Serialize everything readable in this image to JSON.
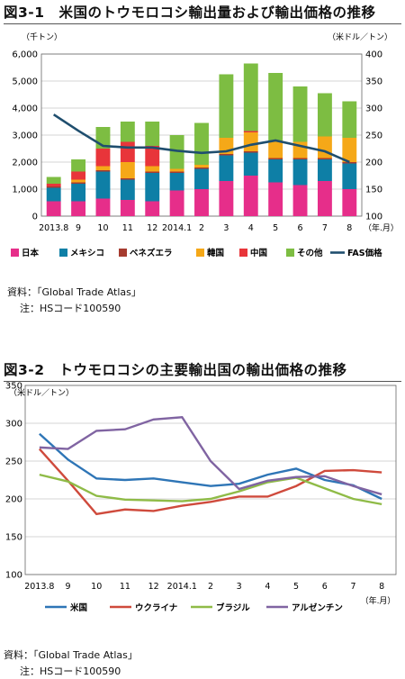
{
  "figures": [
    {
      "title": "図3-1　米国のトウモロコシ輸出量および輸出価格の推移",
      "source": "資料：「Global Trade Atlas」",
      "note": "注：HSコード100590"
    },
    {
      "title": "図3-2　トウモロコシの主要輸出国の輸出価格の推移",
      "source": "資料：「Global Trade Atlas」",
      "note": "注：HSコード100590"
    }
  ],
  "chart_data": [
    {
      "type": "bar",
      "stacked": true,
      "categories": [
        "2013.8",
        "9",
        "10",
        "11",
        "12",
        "2014.1",
        "2",
        "3",
        "4",
        "5",
        "6",
        "7",
        "8"
      ],
      "xunit": "（年.月）",
      "ylabel_left": "（千トン）",
      "ylabel_right": "（米ドル／トン）",
      "ylim_left": [
        0,
        6000
      ],
      "yticks_left": [
        0,
        1000,
        2000,
        3000,
        4000,
        5000,
        6000
      ],
      "ylim_right": [
        100,
        400
      ],
      "yticks_right": [
        100,
        150,
        200,
        250,
        300,
        350,
        400
      ],
      "grid": true,
      "legend_position": "bottom",
      "series": [
        {
          "name": "日本",
          "color": "#e62e8a",
          "values": [
            550,
            550,
            650,
            600,
            550,
            950,
            1000,
            1300,
            1500,
            1250,
            1150,
            1300,
            1000
          ]
        },
        {
          "name": "メキシコ",
          "color": "#0e7fa6",
          "values": [
            500,
            650,
            1000,
            750,
            1050,
            650,
            750,
            950,
            850,
            850,
            950,
            800,
            950
          ]
        },
        {
          "name": "ベネズエラ",
          "color": "#a63b2f",
          "values": [
            50,
            50,
            50,
            50,
            50,
            50,
            50,
            50,
            50,
            50,
            50,
            50,
            50
          ]
        },
        {
          "name": "韓国",
          "color": "#f5a818",
          "values": [
            0,
            100,
            150,
            600,
            200,
            100,
            100,
            600,
            700,
            650,
            600,
            800,
            900
          ]
        },
        {
          "name": "中国",
          "color": "#e8353a",
          "values": [
            100,
            300,
            650,
            750,
            750,
            0,
            0,
            0,
            50,
            0,
            0,
            0,
            0
          ]
        },
        {
          "name": "その他",
          "color": "#7dbd42",
          "values": [
            250,
            450,
            800,
            750,
            900,
            1250,
            1550,
            2350,
            2500,
            2500,
            2050,
            1600,
            1350
          ]
        }
      ],
      "line": {
        "name": "FAS価格",
        "color": "#1f4e6e",
        "axis": "right",
        "values": [
          288,
          258,
          230,
          227,
          227,
          221,
          217,
          220,
          232,
          240,
          230,
          220,
          200
        ]
      }
    },
    {
      "type": "line",
      "categories": [
        "2013.8",
        "9",
        "10",
        "11",
        "12",
        "2014.1",
        "2",
        "3",
        "4",
        "5",
        "6",
        "7",
        "8"
      ],
      "xunit": "（年.月）",
      "ylabel": "（米ドル／トン）",
      "ylim": [
        100,
        350
      ],
      "yticks": [
        100,
        150,
        200,
        250,
        300,
        350
      ],
      "grid": true,
      "legend_position": "bottom",
      "series": [
        {
          "name": "米国",
          "color": "#2e75b6",
          "values": [
            286,
            252,
            227,
            225,
            227,
            222,
            217,
            220,
            232,
            240,
            225,
            218,
            200
          ]
        },
        {
          "name": "ウクライナ",
          "color": "#cf4a3c",
          "values": [
            266,
            224,
            180,
            186,
            184,
            191,
            196,
            203,
            203,
            217,
            237,
            238,
            235
          ]
        },
        {
          "name": "ブラジル",
          "color": "#8fbb47",
          "values": [
            232,
            223,
            204,
            199,
            198,
            197,
            200,
            210,
            222,
            228,
            214,
            200,
            193
          ]
        },
        {
          "name": "アルゼンチン",
          "color": "#8064a2",
          "values": [
            268,
            266,
            290,
            292,
            305,
            308,
            250,
            213,
            224,
            229,
            230,
            217,
            206
          ]
        }
      ]
    }
  ]
}
